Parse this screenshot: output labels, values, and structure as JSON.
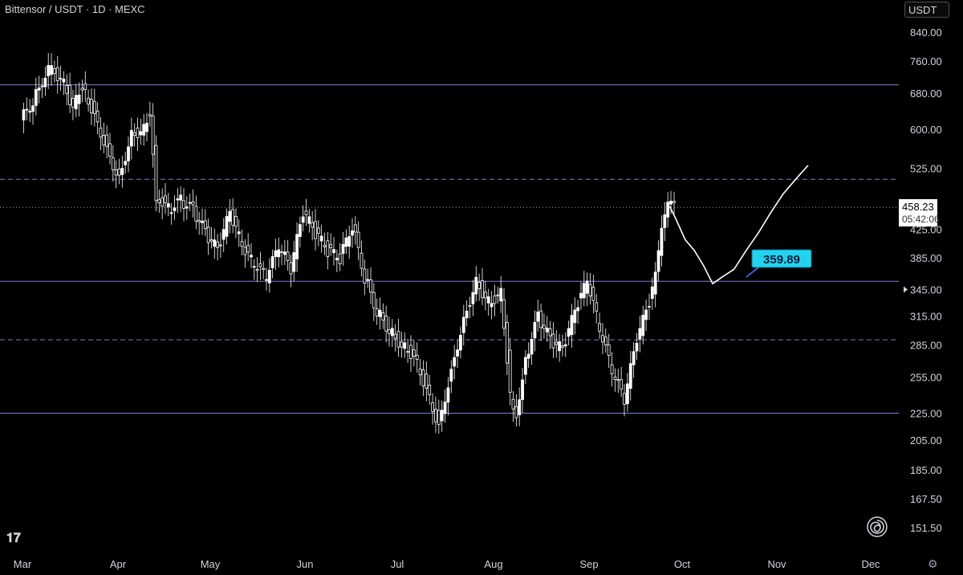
{
  "header": {
    "title": "Bittensor / USDT · 1D · MEXC",
    "currency_label": "USDT"
  },
  "price_box": {
    "price": "458.23",
    "countdown": "05:42:06"
  },
  "annotation": {
    "label": "359.89",
    "value": 359.89
  },
  "icons": {
    "logo": "tradingview-logo-icon",
    "settings": "gear-icon",
    "spiral": "spiral-icon"
  },
  "colors": {
    "background": "#000000",
    "candle": "#ffffff",
    "level_line": "#7b80d6",
    "label_bg": "#22d3ee"
  },
  "chart_data": {
    "type": "line",
    "title": "Bittensor / USDT · 1D · MEXC",
    "scale": "log",
    "y_ticks": [
      840.0,
      760.0,
      680.0,
      600.0,
      525.0,
      458.23,
      425.0,
      385.0,
      345.0,
      315.0,
      285.0,
      255.0,
      225.0,
      205.0,
      185.0,
      167.5,
      151.5
    ],
    "y_tick_labels": [
      "840.00",
      "760.00",
      "680.00",
      "600.00",
      "525.00",
      "425.00",
      "385.00",
      "345.00",
      "315.00",
      "285.00",
      "255.00",
      "225.00",
      "205.00",
      "185.00",
      "167.50",
      "151.50"
    ],
    "x_labels": [
      "Mar",
      "Apr",
      "May",
      "Jun",
      "Jul",
      "Aug",
      "Sep",
      "Oct",
      "Nov",
      "Dec"
    ],
    "horizontal_levels": [
      {
        "value": 700,
        "style": "solid"
      },
      {
        "value": 505,
        "style": "dashed"
      },
      {
        "value": 458.23,
        "style": "dotted"
      },
      {
        "value": 355,
        "style": "solid"
      },
      {
        "value": 290,
        "style": "dashed"
      },
      {
        "value": 225,
        "style": "solid"
      }
    ],
    "series": [
      {
        "kind": "price",
        "points": [
          {
            "x": "Mar 01",
            "y": 620
          },
          {
            "x": "Mar 05",
            "y": 660
          },
          {
            "x": "Mar 10",
            "y": 740
          },
          {
            "x": "Mar 14",
            "y": 720
          },
          {
            "x": "Mar 18",
            "y": 650
          },
          {
            "x": "Mar 21",
            "y": 700
          },
          {
            "x": "Mar 25",
            "y": 630
          },
          {
            "x": "Mar 29",
            "y": 560
          },
          {
            "x": "Apr 02",
            "y": 505
          },
          {
            "x": "Apr 06",
            "y": 590
          },
          {
            "x": "Apr 10",
            "y": 600
          },
          {
            "x": "Apr 12",
            "y": 640
          },
          {
            "x": "Apr 14",
            "y": 480
          },
          {
            "x": "Apr 18",
            "y": 455
          },
          {
            "x": "Apr 22",
            "y": 470
          },
          {
            "x": "Apr 26",
            "y": 455
          },
          {
            "x": "Apr 30",
            "y": 420
          },
          {
            "x": "May 04",
            "y": 395
          },
          {
            "x": "May 08",
            "y": 450
          },
          {
            "x": "May 12",
            "y": 400
          },
          {
            "x": "May 16",
            "y": 375
          },
          {
            "x": "May 20",
            "y": 360
          },
          {
            "x": "May 24",
            "y": 400
          },
          {
            "x": "May 28",
            "y": 370
          },
          {
            "x": "Jun 01",
            "y": 450
          },
          {
            "x": "Jun 05",
            "y": 420
          },
          {
            "x": "Jun 09",
            "y": 395
          },
          {
            "x": "Jun 13",
            "y": 385
          },
          {
            "x": "Jun 17",
            "y": 430
          },
          {
            "x": "Jun 21",
            "y": 360
          },
          {
            "x": "Jun 25",
            "y": 320
          },
          {
            "x": "Jun 29",
            "y": 300
          },
          {
            "x": "Jul 03",
            "y": 285
          },
          {
            "x": "Jul 07",
            "y": 275
          },
          {
            "x": "Jul 11",
            "y": 245
          },
          {
            "x": "Jul 15",
            "y": 215
          },
          {
            "x": "Jul 19",
            "y": 260
          },
          {
            "x": "Jul 23",
            "y": 310
          },
          {
            "x": "Jul 27",
            "y": 355
          },
          {
            "x": "Jul 31",
            "y": 330
          },
          {
            "x": "Aug 04",
            "y": 340
          },
          {
            "x": "Aug 07",
            "y": 240
          },
          {
            "x": "Aug 09",
            "y": 225
          },
          {
            "x": "Aug 12",
            "y": 270
          },
          {
            "x": "Aug 16",
            "y": 315
          },
          {
            "x": "Aug 20",
            "y": 290
          },
          {
            "x": "Aug 24",
            "y": 280
          },
          {
            "x": "Aug 28",
            "y": 320
          },
          {
            "x": "Sep 01",
            "y": 355
          },
          {
            "x": "Sep 05",
            "y": 300
          },
          {
            "x": "Sep 09",
            "y": 260
          },
          {
            "x": "Sep 13",
            "y": 235
          },
          {
            "x": "Sep 17",
            "y": 290
          },
          {
            "x": "Sep 21",
            "y": 330
          },
          {
            "x": "Sep 23",
            "y": 360
          },
          {
            "x": "Sep 25",
            "y": 420
          },
          {
            "x": "Sep 27",
            "y": 460
          }
        ]
      },
      {
        "kind": "projection",
        "points": [
          {
            "x": "Sep 27",
            "y": 460
          },
          {
            "x": "Sep 29",
            "y": 440
          },
          {
            "x": "Oct 02",
            "y": 410
          },
          {
            "x": "Oct 05",
            "y": 395
          },
          {
            "x": "Oct 08",
            "y": 375
          },
          {
            "x": "Oct 11",
            "y": 352
          },
          {
            "x": "Oct 14",
            "y": 360
          },
          {
            "x": "Oct 18",
            "y": 370
          },
          {
            "x": "Oct 22",
            "y": 395
          },
          {
            "x": "Oct 26",
            "y": 420
          },
          {
            "x": "Oct 30",
            "y": 450
          },
          {
            "x": "Nov 03",
            "y": 480
          },
          {
            "x": "Nov 07",
            "y": 505
          },
          {
            "x": "Nov 11",
            "y": 530
          }
        ]
      }
    ]
  }
}
